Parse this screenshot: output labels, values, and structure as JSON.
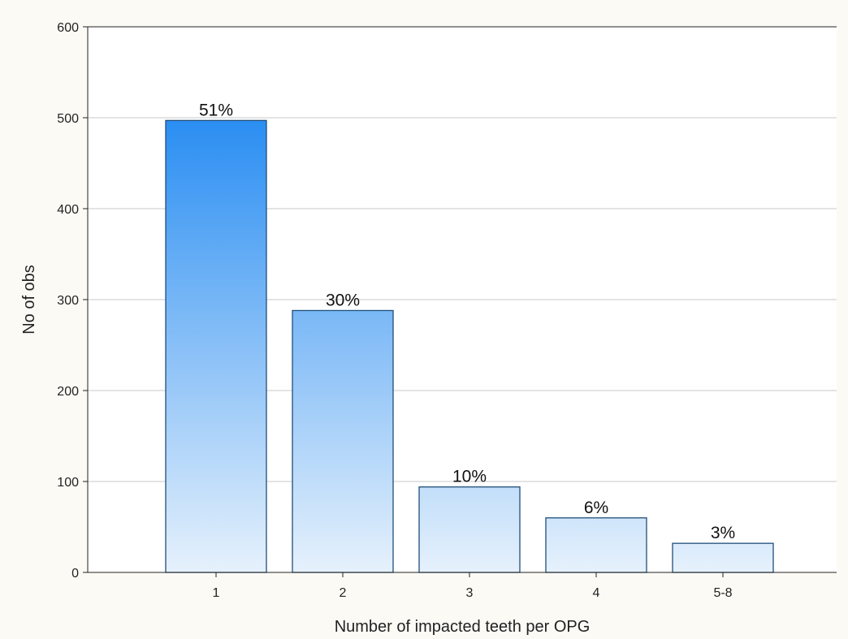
{
  "chart_data": {
    "type": "bar",
    "title": "",
    "xlabel": "Number of impacted teeth per OPG",
    "ylabel": "No of obs",
    "categories": [
      "1",
      "2",
      "3",
      "4",
      "5-8"
    ],
    "values": [
      497,
      288,
      94,
      60,
      32
    ],
    "data_labels": [
      "51%",
      "30%",
      "10%",
      "6%",
      "3%"
    ],
    "ylim": [
      0,
      600
    ],
    "yticks": [
      0,
      100,
      200,
      300,
      400,
      500,
      600
    ],
    "grid": "horizontal",
    "legend": "none",
    "colors": {
      "bar_top_max": "#2a8ef2",
      "bar_bottom": "#e6f1fc",
      "bar_edge": "#1f4e7a",
      "grid": "#c8c8c8",
      "background": "#fbfaf5",
      "plot_background": "#ffffff"
    }
  }
}
